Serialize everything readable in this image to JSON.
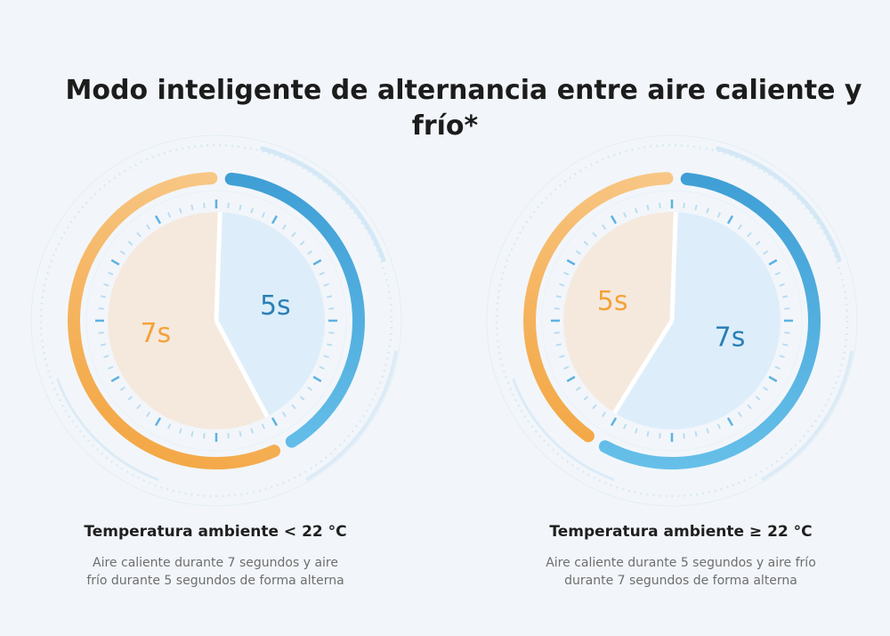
{
  "title": {
    "line1": "Modo inteligente de alternancia entre aire caliente y",
    "line2": "frío*"
  },
  "colors": {
    "hot": "#f3a33a",
    "hot_fill": "#f5e9de",
    "cold": "#3c9fd6",
    "cold_fill": "#ddeefa",
    "tick": "#bcdcf0",
    "tick_accent": "#5fb2e1",
    "background": "#f2f6fa"
  },
  "dials": [
    {
      "hot_seconds": 7,
      "cold_seconds": 5,
      "hot_label": "7s",
      "cold_label": "5s",
      "heading": "Temperatura ambiente < 22 °C",
      "desc_line1": "Aire caliente durante 7 segundos y aire",
      "desc_line2": "frío durante 5 segundos de forma alterna"
    },
    {
      "hot_seconds": 5,
      "cold_seconds": 7,
      "hot_label": "5s",
      "cold_label": "7s",
      "heading": "Temperatura ambiente ≥ 22 °C",
      "desc_line1": "Aire caliente durante 5 segundos y aire frío",
      "desc_line2": "durante 7 segundos de forma alterna"
    }
  ]
}
